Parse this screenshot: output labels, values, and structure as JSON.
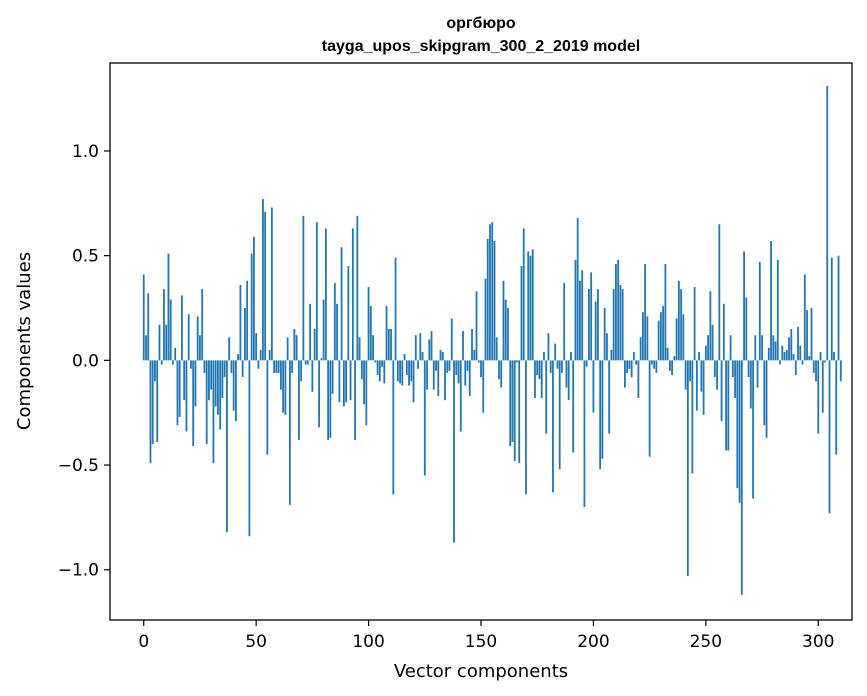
{
  "chart_data": {
    "type": "bar",
    "title": "оргбюро",
    "subtitle": "tayga_upos_skipgram_300_2_2019 model",
    "xlabel": "Vector components",
    "ylabel": "Components values",
    "xlim": [
      -15,
      315
    ],
    "ylim": [
      -1.24,
      1.42
    ],
    "x_ticks": [
      0,
      50,
      100,
      150,
      200,
      250,
      300
    ],
    "x_tick_labels": [
      "0",
      "50",
      "100",
      "150",
      "200",
      "250",
      "300"
    ],
    "y_ticks": [
      -1.0,
      -0.5,
      0.0,
      0.5,
      1.0
    ],
    "y_tick_labels": [
      "−1.0",
      "−0.5",
      "0.0",
      "0.5",
      "1.0"
    ],
    "bar_color": "#1f77b4",
    "grid": false,
    "values": [
      0.41,
      0.12,
      0.32,
      -0.49,
      -0.4,
      -0.1,
      -0.39,
      0.17,
      -0.02,
      0.34,
      0.17,
      0.51,
      0.29,
      -0.02,
      0.06,
      -0.31,
      -0.27,
      0.31,
      -0.19,
      -0.34,
      0.22,
      -0.04,
      -0.41,
      -0.22,
      0.21,
      0.12,
      0.34,
      -0.06,
      -0.4,
      -0.19,
      -0.14,
      -0.49,
      -0.22,
      -0.26,
      -0.33,
      -0.18,
      -0.08,
      -0.82,
      0.11,
      -0.06,
      -0.24,
      -0.29,
      0.03,
      0.36,
      -0.08,
      0.25,
      0.38,
      -0.84,
      0.51,
      0.59,
      0.13,
      -0.04,
      0.05,
      0.77,
      0.71,
      -0.45,
      0.05,
      0.73,
      -0.06,
      -0.06,
      -0.06,
      -0.14,
      -0.25,
      -0.26,
      0.11,
      -0.69,
      -0.06,
      0.15,
      0.12,
      -0.38,
      -0.1,
      0.69,
      -0.02,
      -0.02,
      0.27,
      -0.15,
      0.15,
      0.66,
      -0.32,
      0.01,
      0.29,
      0.63,
      -0.38,
      -0.37,
      -0.16,
      0.37,
      0.27,
      -0.2,
      0.54,
      -0.22,
      -0.2,
      0.45,
      -0.19,
      0.63,
      -0.38,
      0.69,
      0.11,
      -0.09,
      -0.21,
      -0.31,
      0.35,
      0.26,
      0.12,
      -0.01,
      -0.07,
      -0.1,
      -0.03,
      -0.11,
      0.26,
      0.15,
      0.15,
      -0.64,
      0.49,
      -0.1,
      -0.11,
      -0.12,
      0.03,
      -0.07,
      -0.12,
      -0.1,
      -0.2,
      0.12,
      -0.04,
      0.13,
      0.04,
      -0.55,
      -0.14,
      0.1,
      0.14,
      -0.14,
      -0.05,
      -0.17,
      0.05,
      0.04,
      -0.19,
      -0.06,
      -0.05,
      0.2,
      -0.87,
      -0.07,
      -0.11,
      -0.34,
      0.14,
      -0.12,
      -0.05,
      -0.17,
      0.15,
      0.05,
      0.33,
      -0.01,
      -0.08,
      -0.25,
      0.39,
      0.58,
      0.65,
      0.66,
      0.57,
      0.11,
      -0.09,
      -0.13,
      0.38,
      0.29,
      0.25,
      -0.41,
      -0.39,
      -0.48,
      -0.01,
      -0.49,
      0.45,
      0.63,
      -0.64,
      0.52,
      0.5,
      0.53,
      -0.18,
      -0.07,
      -0.09,
      -0.18,
      0.04,
      -0.35,
      0.13,
      -0.06,
      -0.63,
      0.08,
      -0.04,
      -0.52,
      -0.06,
      0.37,
      -0.13,
      -0.19,
      0.04,
      -0.44,
      0.48,
      0.68,
      0.38,
      0.43,
      -0.7,
      -0.03,
      0.34,
      0.42,
      -0.25,
      0.28,
      0.34,
      -0.52,
      -0.47,
      0.25,
      0.13,
      -0.35,
      0.05,
      0.34,
      0.46,
      0.48,
      0.36,
      0.34,
      -0.13,
      -0.06,
      -0.04,
      -0.08,
      0.04,
      -0.02,
      -0.18,
      0.11,
      0.23,
      0.46,
      0.21,
      -0.46,
      -0.02,
      -0.04,
      -0.06,
      0.19,
      0.23,
      0.26,
      0.46,
      0.06,
      -0.05,
      -0.07,
      0.02,
      0.2,
      0.38,
      0.34,
      0.22,
      -0.14,
      -1.03,
      -0.1,
      -0.54,
      0.35,
      -0.24,
      0.04,
      -0.15,
      -0.26,
      0.07,
      0.12,
      0.33,
      0.17,
      -0.08,
      -0.14,
      0.65,
      -0.29,
      0.27,
      -0.43,
      -0.43,
      0.12,
      -0.08,
      -0.18,
      -0.61,
      -0.68,
      -1.12,
      0.52,
      0.3,
      -0.08,
      -0.23,
      -0.66,
      0.12,
      -0.13,
      0.47,
      0.12,
      -0.31,
      -0.37,
      0.06,
      0.57,
      0.12,
      0.09,
      0.48,
      -0.02,
      0.07,
      0.04,
      0.05,
      0.11,
      0.15,
      0.03,
      -0.07,
      0.16,
      0.07,
      -0.02,
      0.41,
      0.24,
      0.02,
      0.25,
      -0.06,
      -0.1,
      -0.35,
      0.04,
      -0.25,
      -0.01,
      1.31,
      -0.73,
      0.49,
      0.04,
      -0.45,
      0.5,
      -0.1
    ]
  }
}
